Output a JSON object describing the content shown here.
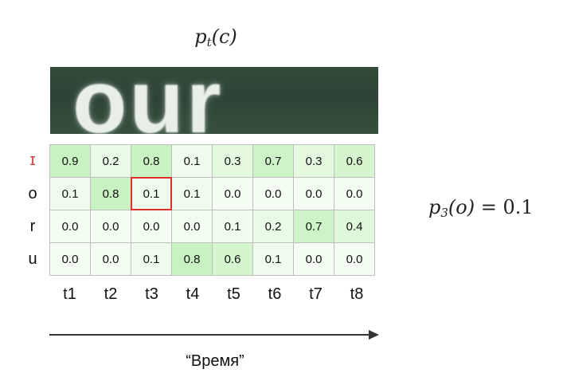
{
  "title_formula": {
    "base": "p",
    "subscript": "t",
    "arg": "(c)"
  },
  "side_formula": {
    "base": "p",
    "subscript": "3",
    "arg": "(o)",
    "equals": "=",
    "value": "0.1"
  },
  "word_image": {
    "text": "our"
  },
  "row_labels": [
    "ɪ",
    "o",
    "r",
    "u"
  ],
  "column_labels": [
    "t1",
    "t2",
    "t3",
    "t4",
    "t5",
    "t6",
    "t7",
    "t8"
  ],
  "matrix": [
    [
      "0.9",
      "0.2",
      "0.8",
      "0.1",
      "0.3",
      "0.7",
      "0.3",
      "0.6"
    ],
    [
      "0.1",
      "0.8",
      "0.1",
      "0.1",
      "0.0",
      "0.0",
      "0.0",
      "0.0"
    ],
    [
      "0.0",
      "0.0",
      "0.0",
      "0.0",
      "0.1",
      "0.2",
      "0.7",
      "0.4"
    ],
    [
      "0.0",
      "0.0",
      "0.1",
      "0.8",
      "0.6",
      "0.1",
      "0.0",
      "0.0"
    ]
  ],
  "highlighted_cell": {
    "row": 1,
    "col": 2
  },
  "axis_label": "“Время”",
  "colors": {
    "grid_line": "#bfbfbf",
    "high_fill": "#c9f2c2",
    "low_fill": "#f4fdf2",
    "highlight_border": "#e03030",
    "special_label": "#e03a3a",
    "word_bg": "#2e4336"
  }
}
